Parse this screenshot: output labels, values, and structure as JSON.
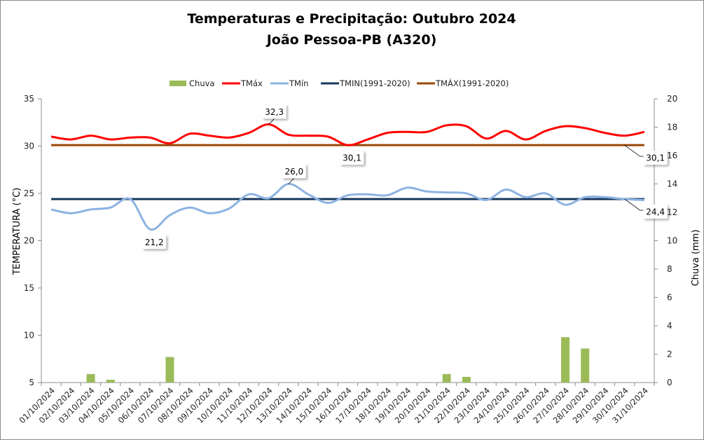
{
  "chart_data": {
    "type": "line",
    "title": "Temperaturas e Precipitação: Outubro 2024",
    "subtitle": "João Pessoa-PB (A320)",
    "categories": [
      "01/10/2024",
      "02/10/2024",
      "03/10/2024",
      "04/10/2024",
      "05/10/2024",
      "06/10/2024",
      "07/10/2024",
      "08/10/2024",
      "09/10/2024",
      "10/10/2024",
      "11/10/2024",
      "12/10/2024",
      "13/10/2024",
      "14/10/2024",
      "15/10/2024",
      "16/10/2024",
      "17/10/2024",
      "18/10/2024",
      "19/10/2024",
      "20/10/2024",
      "21/10/2024",
      "22/10/2024",
      "23/10/2024",
      "24/10/2024",
      "25/10/2024",
      "26/10/2024",
      "27/10/2024",
      "28/10/2024",
      "29/10/2024",
      "30/10/2024",
      "31/10/2024"
    ],
    "ylabel": "TEMPERATURA (°C)",
    "y2label": "Chuva (mm)",
    "ylim": [
      5,
      35
    ],
    "yticks": [
      "5",
      "10",
      "15",
      "20",
      "25",
      "30",
      "35"
    ],
    "y2lim": [
      0,
      20
    ],
    "y2ticks": [
      "0",
      "2",
      "4",
      "6",
      "8",
      "10",
      "12",
      "14",
      "16",
      "18",
      "20"
    ],
    "grid": false,
    "legend_position": "top",
    "series": [
      {
        "name": "Chuva",
        "type": "bar",
        "axis": "right",
        "color": "#9bbb59",
        "values": [
          0,
          0,
          0.6,
          0.2,
          0,
          0,
          1.8,
          0,
          0,
          0,
          0,
          0,
          0,
          0,
          0,
          0,
          0,
          0,
          0,
          0,
          0.6,
          0.4,
          0,
          0,
          0,
          0,
          3.2,
          2.4,
          0,
          0,
          0
        ]
      },
      {
        "name": "TMáx",
        "type": "line",
        "axis": "left",
        "color": "#ff0000",
        "values": [
          31.0,
          30.7,
          31.1,
          30.7,
          30.9,
          30.9,
          30.3,
          31.3,
          31.1,
          30.9,
          31.4,
          32.3,
          31.2,
          31.1,
          31.0,
          30.1,
          30.7,
          31.4,
          31.5,
          31.5,
          32.2,
          32.1,
          30.8,
          31.6,
          30.7,
          31.6,
          32.1,
          31.9,
          31.4,
          31.1,
          31.5
        ]
      },
      {
        "name": "TMín",
        "type": "line",
        "axis": "left",
        "color": "#8db3e2",
        "values": [
          23.3,
          22.9,
          23.3,
          23.5,
          24.4,
          21.2,
          22.7,
          23.5,
          22.9,
          23.4,
          24.9,
          24.5,
          26.0,
          24.9,
          24.0,
          24.8,
          24.9,
          24.8,
          25.6,
          25.2,
          25.1,
          25.0,
          24.3,
          25.4,
          24.6,
          25.0,
          23.8,
          24.6,
          24.6,
          24.4,
          24.3
        ]
      },
      {
        "name": "TMIN(1991-2020)",
        "type": "line",
        "axis": "left",
        "color": "#17375e",
        "constant": 24.4
      },
      {
        "name": "TMÁX(1991-2020)",
        "type": "line",
        "axis": "left",
        "color": "#984807",
        "constant": 30.1
      }
    ],
    "annotations": [
      {
        "series": "TMáx",
        "day": 12,
        "text": "32,3",
        "position": "above"
      },
      {
        "series": "TMáx",
        "day": 16,
        "text": "30,1",
        "position": "below"
      },
      {
        "series": "TMín",
        "day": 6,
        "text": "21,2",
        "position": "below"
      },
      {
        "series": "TMín",
        "day": 13,
        "text": "26,0",
        "position": "above"
      },
      {
        "series": "TMÁX(1991-2020)",
        "day": 30,
        "text": "30,1",
        "position": "callout-below-right"
      },
      {
        "series": "TMIN(1991-2020)",
        "day": 30,
        "text": "24,4",
        "position": "callout-below-right"
      }
    ]
  }
}
